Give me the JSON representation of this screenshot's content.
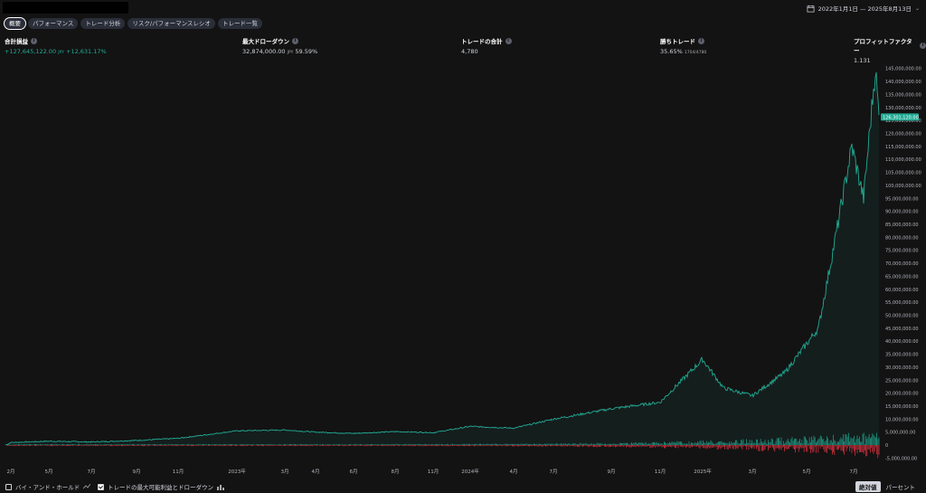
{
  "header": {
    "date_range": "2022年1月1日 — 2025年8月13日"
  },
  "tabs": [
    {
      "label": "概要"
    },
    {
      "label": "パフォーマンス"
    },
    {
      "label": "トレード分析"
    },
    {
      "label": "リスク/パフォーマンスレシオ"
    },
    {
      "label": "トレード一覧"
    }
  ],
  "stats": {
    "total_pnl": {
      "label": "合計損益",
      "value": "+127,645,122.00",
      "unit": "JPY",
      "pct": "+12,631.17%"
    },
    "max_drawdown": {
      "label": "最大ドローダウン",
      "value": "32,874,000.00",
      "unit": "JPY",
      "pct": "59.59%"
    },
    "total_trades": {
      "label": "トレードの合計",
      "value": "4,780"
    },
    "win_trades": {
      "label": "勝ちトレード",
      "value": "35.65%",
      "ratio": "1704/4780"
    },
    "profit_factor": {
      "label": "プロフィットファクター",
      "value": "1.131"
    }
  },
  "chart_data": {
    "type": "area",
    "title": "",
    "x_ticks": [
      "2月",
      "5月",
      "7月",
      "9月",
      "11月",
      "2023年",
      "3月",
      "4月",
      "6月",
      "8月",
      "11月",
      "2024年",
      "4月",
      "7月",
      "9月",
      "11月",
      "2025年",
      "3月",
      "5月",
      "7月"
    ],
    "y_ticks": [
      "145,000,000.00",
      "140,000,000.00",
      "135,000,000.00",
      "130,000,000.00",
      "125,000,000.00",
      "120,000,000.00",
      "115,000,000.00",
      "110,000,000.00",
      "105,000,000.00",
      "100,000,000.00",
      "95,000,000.00",
      "90,000,000.00",
      "85,000,000.00",
      "80,000,000.00",
      "75,000,000.00",
      "70,000,000.00",
      "65,000,000.00",
      "60,000,000.00",
      "55,000,000.00",
      "50,000,000.00",
      "45,000,000.00",
      "40,000,000.00",
      "35,000,000.00",
      "30,000,000.00",
      "25,000,000.00",
      "20,000,000.00",
      "15,000,000.00",
      "10,000,000.00",
      "5,000,000.00",
      "0",
      "-5,000,000.00"
    ],
    "ylim": [
      -8000000,
      147000000
    ],
    "current_value_label": "126,301,120.00",
    "current_value": 126301120,
    "equity_x": [
      "2022-01",
      "2022-02",
      "2022-05",
      "2022-07",
      "2022-09",
      "2022-11",
      "2023-01",
      "2023-03",
      "2023-04",
      "2023-06",
      "2023-08",
      "2023-11",
      "2024-01",
      "2024-04",
      "2024-07",
      "2024-09",
      "2024-11",
      "2025-01",
      "2025-02",
      "2025-03",
      "2025-04",
      "2025-05",
      "2025-06",
      "2025-06b",
      "2025-07",
      "2025-07b",
      "2025-08"
    ],
    "equity_values": [
      0,
      1000000,
      1500000,
      1200000,
      1800000,
      2600000,
      5500000,
      5800000,
      5000000,
      4500000,
      5200000,
      4800000,
      7200000,
      6500000,
      10000000,
      14000000,
      16500000,
      33000000,
      22000000,
      19000000,
      28000000,
      45000000,
      82000000,
      115000000,
      95000000,
      145000000,
      126301120
    ],
    "series": [
      {
        "name": "トレードの最大可能利益",
        "color": "#22ab94"
      },
      {
        "name": "ドローダウン",
        "color": "#f23645"
      }
    ],
    "grid": false
  },
  "footer": {
    "buy_hold_label": "バイ・アンド・ホールド",
    "runup_drawdown_label": "トレードの最大可能利益とドローダウン",
    "absolute_label": "絶対値",
    "percent_label": "パーセント"
  },
  "colors": {
    "equity": "#22ab94",
    "drawdown": "#f23645",
    "background": "#131313"
  }
}
